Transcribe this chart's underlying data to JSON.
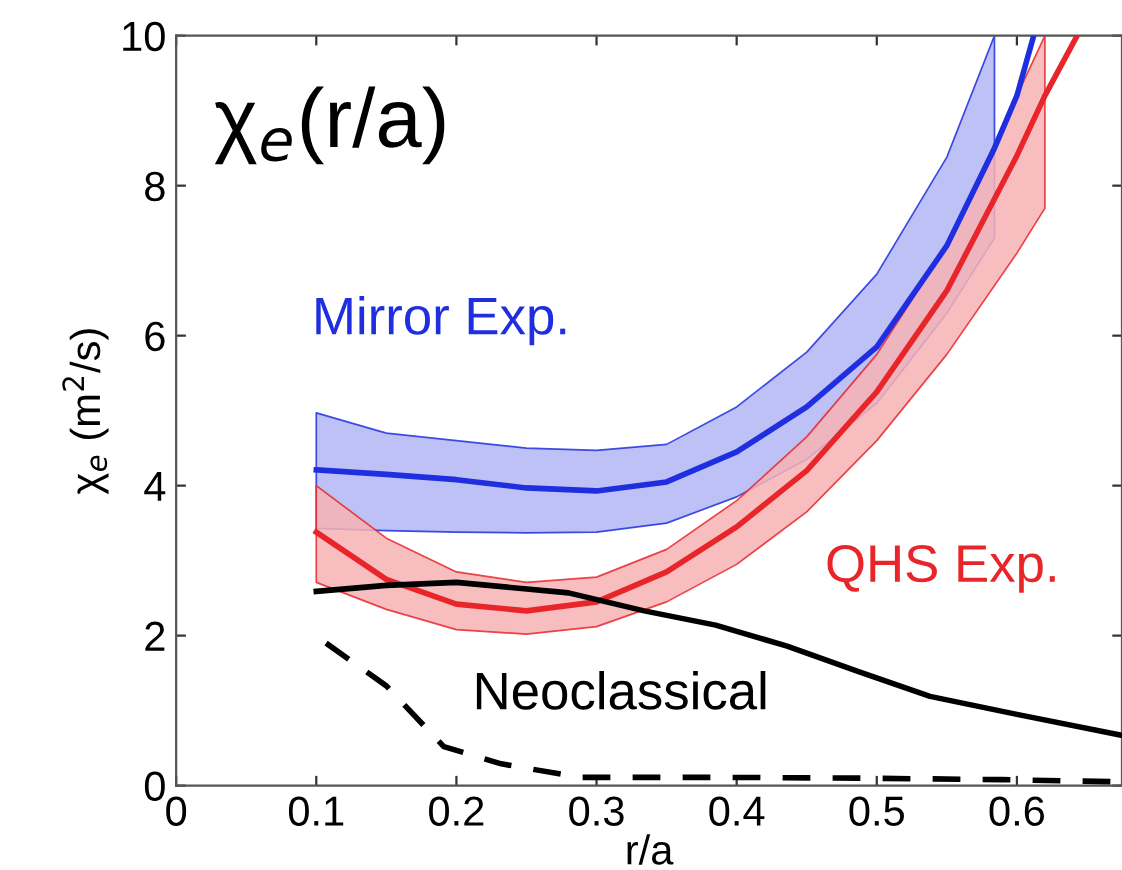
{
  "chart_data": {
    "type": "line",
    "xlabel": "r/a",
    "ylabel": "χ$_{e}$ (m$^{2}$/s)",
    "annotations": [
      "χ$_{e}$(r/a)"
    ],
    "xlim": [
      0,
      0.675
    ],
    "xticks": [
      0,
      0.1,
      0.2,
      0.3,
      0.4,
      0.5,
      0.6
    ],
    "ylim": [
      0,
      10
    ],
    "yticks": [
      0,
      2,
      4,
      6,
      8,
      10
    ],
    "grid": false,
    "legend": false,
    "marker": "none",
    "series": [
      {
        "name": "Mirror Exp.",
        "color": "#1f2fe0",
        "x": [
          0.1,
          0.15,
          0.2,
          0.25,
          0.3,
          0.35,
          0.4,
          0.45,
          0.5,
          0.55,
          0.584,
          0.6,
          0.612
        ],
        "values": [
          4.21,
          4.15,
          4.08,
          3.97,
          3.93,
          4.05,
          4.45,
          5.05,
          5.85,
          7.2,
          8.5,
          9.2,
          10
        ],
        "upper": [
          4.97,
          4.7,
          4.6,
          4.5,
          4.47,
          4.55,
          5.05,
          5.78,
          6.82,
          8.38,
          10,
          null,
          null
        ],
        "lower": [
          3.43,
          3.4,
          3.38,
          3.37,
          3.38,
          3.5,
          3.85,
          4.35,
          5.1,
          6.3,
          7.3,
          null,
          null
        ]
      },
      {
        "name": "QHS Exp.",
        "color": "#e8262a",
        "x": [
          0.1,
          0.15,
          0.2,
          0.25,
          0.3,
          0.35,
          0.4,
          0.45,
          0.5,
          0.55,
          0.6,
          0.62,
          0.643
        ],
        "values": [
          3.38,
          2.75,
          2.42,
          2.33,
          2.45,
          2.85,
          3.45,
          4.2,
          5.25,
          6.6,
          8.4,
          9.2,
          10
        ],
        "upper": [
          4.0,
          3.3,
          2.85,
          2.71,
          2.78,
          3.15,
          3.8,
          4.65,
          5.75,
          7.2,
          9.2,
          10,
          null
        ],
        "lower": [
          2.71,
          2.35,
          2.08,
          2.02,
          2.12,
          2.45,
          2.95,
          3.65,
          4.6,
          5.75,
          7.1,
          7.7,
          null
        ]
      },
      {
        "name": "Neoclassical",
        "color": "#000000",
        "line_style": "solid",
        "x": [
          0.1,
          0.15,
          0.2,
          0.28,
          0.334,
          0.385,
          0.436,
          0.487,
          0.538,
          0.6,
          0.675
        ],
        "values": [
          2.59,
          2.67,
          2.71,
          2.57,
          2.33,
          2.14,
          1.86,
          1.52,
          1.19,
          0.95,
          0.67
        ]
      },
      {
        "color": "#000000",
        "line_style": "dashed",
        "x": [
          0.107,
          0.15,
          0.191,
          0.232,
          0.288,
          0.385,
          0.487,
          0.589,
          0.675
        ],
        "values": [
          1.9,
          1.33,
          0.52,
          0.29,
          0.11,
          0.11,
          0.1,
          0.08,
          0.05
        ]
      }
    ]
  }
}
